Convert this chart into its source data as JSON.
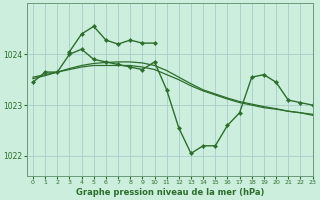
{
  "background_color": "#cceedd",
  "grid_color": "#aacccc",
  "line_color": "#2d6e2d",
  "title": "Graphe pression niveau de la mer (hPa)",
  "xlim": [
    -0.5,
    23
  ],
  "ylim": [
    1021.6,
    1025.0
  ],
  "yticks": [
    1022,
    1023,
    1024
  ],
  "xticks": [
    0,
    1,
    2,
    3,
    4,
    5,
    6,
    7,
    8,
    9,
    10,
    11,
    12,
    13,
    14,
    15,
    16,
    17,
    18,
    19,
    20,
    21,
    22,
    23
  ],
  "series": [
    {
      "x": [
        0,
        1,
        2,
        3,
        4,
        5,
        6,
        7,
        8,
        9,
        10,
        11,
        12,
        13,
        14,
        15,
        16,
        17,
        18,
        19,
        20,
        21,
        22,
        23
      ],
      "y": [
        1023.45,
        1023.65,
        1023.65,
        1024.0,
        1024.1,
        1023.9,
        1023.85,
        1023.8,
        1023.75,
        1023.7,
        1023.85,
        1023.3,
        1022.55,
        1022.05,
        1022.2,
        1022.2,
        1022.6,
        1022.85,
        1023.55,
        1023.6,
        1023.45,
        1023.1,
        1023.05,
        1023.0
      ],
      "marker": "D",
      "markersize": 2.2,
      "linewidth": 1.0
    },
    {
      "x": [
        0,
        1,
        2,
        3,
        4,
        5,
        6,
        7,
        8,
        9,
        10,
        11,
        12,
        13,
        14,
        15,
        16,
        17,
        18,
        19,
        20,
        21,
        22,
        23
      ],
      "y": [
        1023.55,
        1023.6,
        1023.65,
        1023.7,
        1023.75,
        1023.78,
        1023.78,
        1023.78,
        1023.78,
        1023.75,
        1023.7,
        1023.6,
        1023.5,
        1023.38,
        1023.28,
        1023.2,
        1023.12,
        1023.05,
        1023.0,
        1022.95,
        1022.92,
        1022.88,
        1022.85,
        1022.82
      ],
      "marker": null,
      "markersize": 0,
      "linewidth": 0.9
    },
    {
      "x": [
        0,
        1,
        2,
        3,
        4,
        5,
        6,
        7,
        8,
        9,
        10,
        11,
        12,
        13,
        14,
        15,
        16,
        17,
        18,
        19,
        20,
        21,
        22,
        23
      ],
      "y": [
        1023.52,
        1023.58,
        1023.65,
        1023.72,
        1023.78,
        1023.82,
        1023.84,
        1023.85,
        1023.85,
        1023.83,
        1023.78,
        1023.68,
        1023.55,
        1023.42,
        1023.3,
        1023.22,
        1023.14,
        1023.07,
        1023.02,
        1022.97,
        1022.93,
        1022.88,
        1022.85,
        1022.8
      ],
      "marker": null,
      "markersize": 0,
      "linewidth": 0.9
    },
    {
      "x": [
        3,
        4,
        5,
        6,
        7,
        8,
        9,
        10
      ],
      "y": [
        1024.05,
        1024.4,
        1024.55,
        1024.28,
        1024.2,
        1024.28,
        1024.22,
        1024.22
      ],
      "marker": "D",
      "markersize": 2.2,
      "linewidth": 1.0
    }
  ]
}
